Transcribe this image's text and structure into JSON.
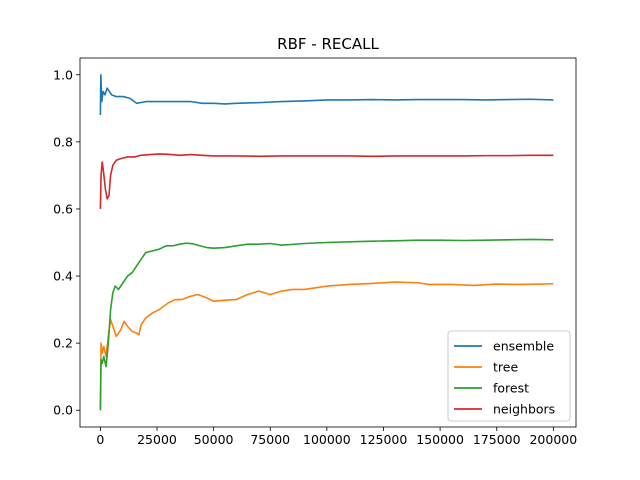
{
  "chart_data": {
    "type": "line",
    "title": "RBF - RECALL",
    "xlabel": "",
    "ylabel": "",
    "xlim": [
      -9000,
      210000
    ],
    "ylim": [
      -0.05,
      1.05
    ],
    "x_ticks": [
      0,
      25000,
      50000,
      75000,
      100000,
      125000,
      150000,
      175000,
      200000
    ],
    "x_tick_labels": [
      "0",
      "25000",
      "50000",
      "75000",
      "100000",
      "125000",
      "150000",
      "175000",
      "200000"
    ],
    "y_ticks": [
      0.0,
      0.2,
      0.4,
      0.6,
      0.8,
      1.0
    ],
    "y_tick_labels": [
      "0.0",
      "0.2",
      "0.4",
      "0.6",
      "0.8",
      "1.0"
    ],
    "grid": false,
    "legend_position": "lower-right",
    "series": [
      {
        "name": "ensemble",
        "color": "#1f77b4",
        "points": [
          [
            0,
            0.88
          ],
          [
            200,
            1.0
          ],
          [
            600,
            0.92
          ],
          [
            1200,
            0.95
          ],
          [
            2000,
            0.94
          ],
          [
            3000,
            0.96
          ],
          [
            4000,
            0.95
          ],
          [
            5000,
            0.94
          ],
          [
            7000,
            0.935
          ],
          [
            10000,
            0.935
          ],
          [
            13000,
            0.93
          ],
          [
            16000,
            0.915
          ],
          [
            20000,
            0.92
          ],
          [
            25000,
            0.92
          ],
          [
            30000,
            0.92
          ],
          [
            35000,
            0.92
          ],
          [
            40000,
            0.92
          ],
          [
            45000,
            0.915
          ],
          [
            50000,
            0.915
          ],
          [
            55000,
            0.913
          ],
          [
            60000,
            0.915
          ],
          [
            70000,
            0.917
          ],
          [
            80000,
            0.92
          ],
          [
            90000,
            0.922
          ],
          [
            100000,
            0.925
          ],
          [
            110000,
            0.925
          ],
          [
            120000,
            0.926
          ],
          [
            130000,
            0.925
          ],
          [
            140000,
            0.926
          ],
          [
            150000,
            0.926
          ],
          [
            160000,
            0.926
          ],
          [
            170000,
            0.925
          ],
          [
            180000,
            0.926
          ],
          [
            190000,
            0.927
          ],
          [
            200000,
            0.925
          ]
        ]
      },
      {
        "name": "tree",
        "color": "#ff7f0e",
        "points": [
          [
            0,
            0.0
          ],
          [
            300,
            0.2
          ],
          [
            800,
            0.17
          ],
          [
            1500,
            0.19
          ],
          [
            2500,
            0.16
          ],
          [
            3500,
            0.22
          ],
          [
            4500,
            0.27
          ],
          [
            5500,
            0.25
          ],
          [
            7000,
            0.22
          ],
          [
            9000,
            0.24
          ],
          [
            10500,
            0.265
          ],
          [
            12000,
            0.25
          ],
          [
            14000,
            0.235
          ],
          [
            16000,
            0.23
          ],
          [
            17000,
            0.225
          ],
          [
            18000,
            0.255
          ],
          [
            20000,
            0.275
          ],
          [
            23000,
            0.29
          ],
          [
            26000,
            0.3
          ],
          [
            28000,
            0.31
          ],
          [
            30000,
            0.32
          ],
          [
            33000,
            0.33
          ],
          [
            36000,
            0.33
          ],
          [
            40000,
            0.34
          ],
          [
            43000,
            0.345
          ],
          [
            47000,
            0.335
          ],
          [
            50000,
            0.325
          ],
          [
            55000,
            0.328
          ],
          [
            60000,
            0.33
          ],
          [
            65000,
            0.345
          ],
          [
            70000,
            0.355
          ],
          [
            75000,
            0.345
          ],
          [
            80000,
            0.355
          ],
          [
            85000,
            0.36
          ],
          [
            90000,
            0.36
          ],
          [
            95000,
            0.365
          ],
          [
            100000,
            0.37
          ],
          [
            110000,
            0.375
          ],
          [
            120000,
            0.378
          ],
          [
            130000,
            0.382
          ],
          [
            140000,
            0.38
          ],
          [
            145000,
            0.375
          ],
          [
            155000,
            0.375
          ],
          [
            165000,
            0.372
          ],
          [
            175000,
            0.376
          ],
          [
            185000,
            0.375
          ],
          [
            195000,
            0.376
          ],
          [
            200000,
            0.377
          ]
        ]
      },
      {
        "name": "forest",
        "color": "#2ca02c",
        "points": [
          [
            0,
            0.0
          ],
          [
            300,
            0.15
          ],
          [
            800,
            0.14
          ],
          [
            1500,
            0.16
          ],
          [
            2500,
            0.13
          ],
          [
            3500,
            0.2
          ],
          [
            4500,
            0.3
          ],
          [
            5500,
            0.35
          ],
          [
            6500,
            0.37
          ],
          [
            8000,
            0.36
          ],
          [
            10000,
            0.38
          ],
          [
            12000,
            0.4
          ],
          [
            14000,
            0.41
          ],
          [
            16000,
            0.43
          ],
          [
            18000,
            0.45
          ],
          [
            20000,
            0.47
          ],
          [
            23000,
            0.475
          ],
          [
            26000,
            0.48
          ],
          [
            29000,
            0.49
          ],
          [
            32000,
            0.49
          ],
          [
            35000,
            0.495
          ],
          [
            38000,
            0.498
          ],
          [
            41000,
            0.496
          ],
          [
            44000,
            0.49
          ],
          [
            47000,
            0.485
          ],
          [
            50000,
            0.483
          ],
          [
            55000,
            0.485
          ],
          [
            60000,
            0.49
          ],
          [
            65000,
            0.495
          ],
          [
            70000,
            0.495
          ],
          [
            75000,
            0.497
          ],
          [
            80000,
            0.492
          ],
          [
            90000,
            0.497
          ],
          [
            100000,
            0.5
          ],
          [
            110000,
            0.502
          ],
          [
            120000,
            0.504
          ],
          [
            130000,
            0.505
          ],
          [
            140000,
            0.507
          ],
          [
            150000,
            0.507
          ],
          [
            160000,
            0.506
          ],
          [
            170000,
            0.507
          ],
          [
            180000,
            0.508
          ],
          [
            190000,
            0.509
          ],
          [
            200000,
            0.508
          ]
        ]
      },
      {
        "name": "neighbors",
        "color": "#d62728",
        "points": [
          [
            0,
            0.6
          ],
          [
            300,
            0.7
          ],
          [
            800,
            0.74
          ],
          [
            1400,
            0.71
          ],
          [
            2200,
            0.66
          ],
          [
            3000,
            0.63
          ],
          [
            3800,
            0.64
          ],
          [
            4500,
            0.7
          ],
          [
            5500,
            0.73
          ],
          [
            7000,
            0.745
          ],
          [
            9000,
            0.75
          ],
          [
            12000,
            0.755
          ],
          [
            15000,
            0.755
          ],
          [
            18000,
            0.76
          ],
          [
            22000,
            0.762
          ],
          [
            26000,
            0.764
          ],
          [
            30000,
            0.763
          ],
          [
            35000,
            0.76
          ],
          [
            40000,
            0.762
          ],
          [
            45000,
            0.76
          ],
          [
            50000,
            0.758
          ],
          [
            60000,
            0.758
          ],
          [
            70000,
            0.757
          ],
          [
            80000,
            0.758
          ],
          [
            90000,
            0.758
          ],
          [
            100000,
            0.758
          ],
          [
            110000,
            0.758
          ],
          [
            120000,
            0.757
          ],
          [
            130000,
            0.758
          ],
          [
            140000,
            0.758
          ],
          [
            150000,
            0.758
          ],
          [
            160000,
            0.758
          ],
          [
            170000,
            0.759
          ],
          [
            180000,
            0.759
          ],
          [
            190000,
            0.76
          ],
          [
            200000,
            0.76
          ]
        ]
      }
    ]
  }
}
